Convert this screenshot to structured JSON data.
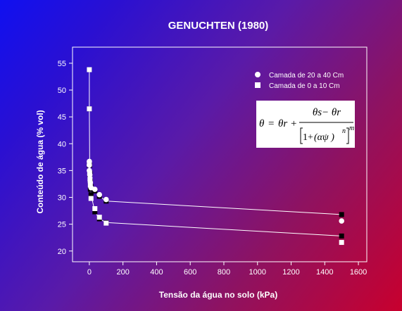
{
  "chart_data": {
    "type": "scatter",
    "title": "GENUCHTEN (1980)",
    "xlabel": "Tensão da água no solo (kPa)",
    "ylabel": "Conteúdo de água (% vol)",
    "xlim": [
      -100,
      1650
    ],
    "ylim": [
      18,
      58
    ],
    "xticks": [
      0,
      200,
      400,
      600,
      800,
      1000,
      1200,
      1400,
      1600
    ],
    "yticks": [
      20,
      25,
      30,
      35,
      40,
      45,
      50,
      55
    ],
    "grid": false,
    "legend_position": "top-right",
    "series": [
      {
        "name": "Camada de 20 a 40 Cm",
        "marker": "circle",
        "points": [
          [
            0,
            36.7
          ],
          [
            0,
            36.0
          ],
          [
            0,
            35.0
          ],
          [
            3,
            34.2
          ],
          [
            6,
            32.8
          ],
          [
            10,
            31.8
          ],
          [
            33,
            31.5
          ],
          [
            60,
            30.5
          ],
          [
            100,
            29.6
          ],
          [
            1500,
            25.6
          ]
        ],
        "fit": [
          [
            0,
            36.0
          ],
          [
            3,
            34.2
          ],
          [
            6,
            33.0
          ],
          [
            10,
            32.0
          ],
          [
            33,
            31.2
          ],
          [
            60,
            30.2
          ],
          [
            100,
            29.3
          ],
          [
            1500,
            26.8
          ]
        ]
      },
      {
        "name": "Camada de 0 a 10 Cm",
        "marker": "square",
        "points": [
          [
            0,
            53.8
          ],
          [
            0,
            46.5
          ],
          [
            0,
            36.2
          ],
          [
            2,
            34.5
          ],
          [
            4,
            33.4
          ],
          [
            6,
            32.3
          ],
          [
            10,
            29.8
          ],
          [
            33,
            27.9
          ],
          [
            60,
            26.3
          ],
          [
            100,
            25.2
          ],
          [
            1500,
            21.6
          ]
        ],
        "fit": [
          [
            0,
            53.8
          ],
          [
            0,
            46.5
          ],
          [
            2,
            36.0
          ],
          [
            4,
            34.5
          ],
          [
            6,
            31.5
          ],
          [
            10,
            30.5
          ],
          [
            33,
            27.3
          ],
          [
            60,
            26.0
          ],
          [
            100,
            25.3
          ],
          [
            1500,
            22.8
          ]
        ]
      }
    ],
    "annotation": {
      "lhs": "θ",
      "eq_sign": "=",
      "theta_r": "θr",
      "plus": "+",
      "numerator": "θs− θr",
      "den_one": "1+",
      "den_alpha": "(αψ )",
      "exp_n": "n",
      "exp_m": "m"
    }
  }
}
